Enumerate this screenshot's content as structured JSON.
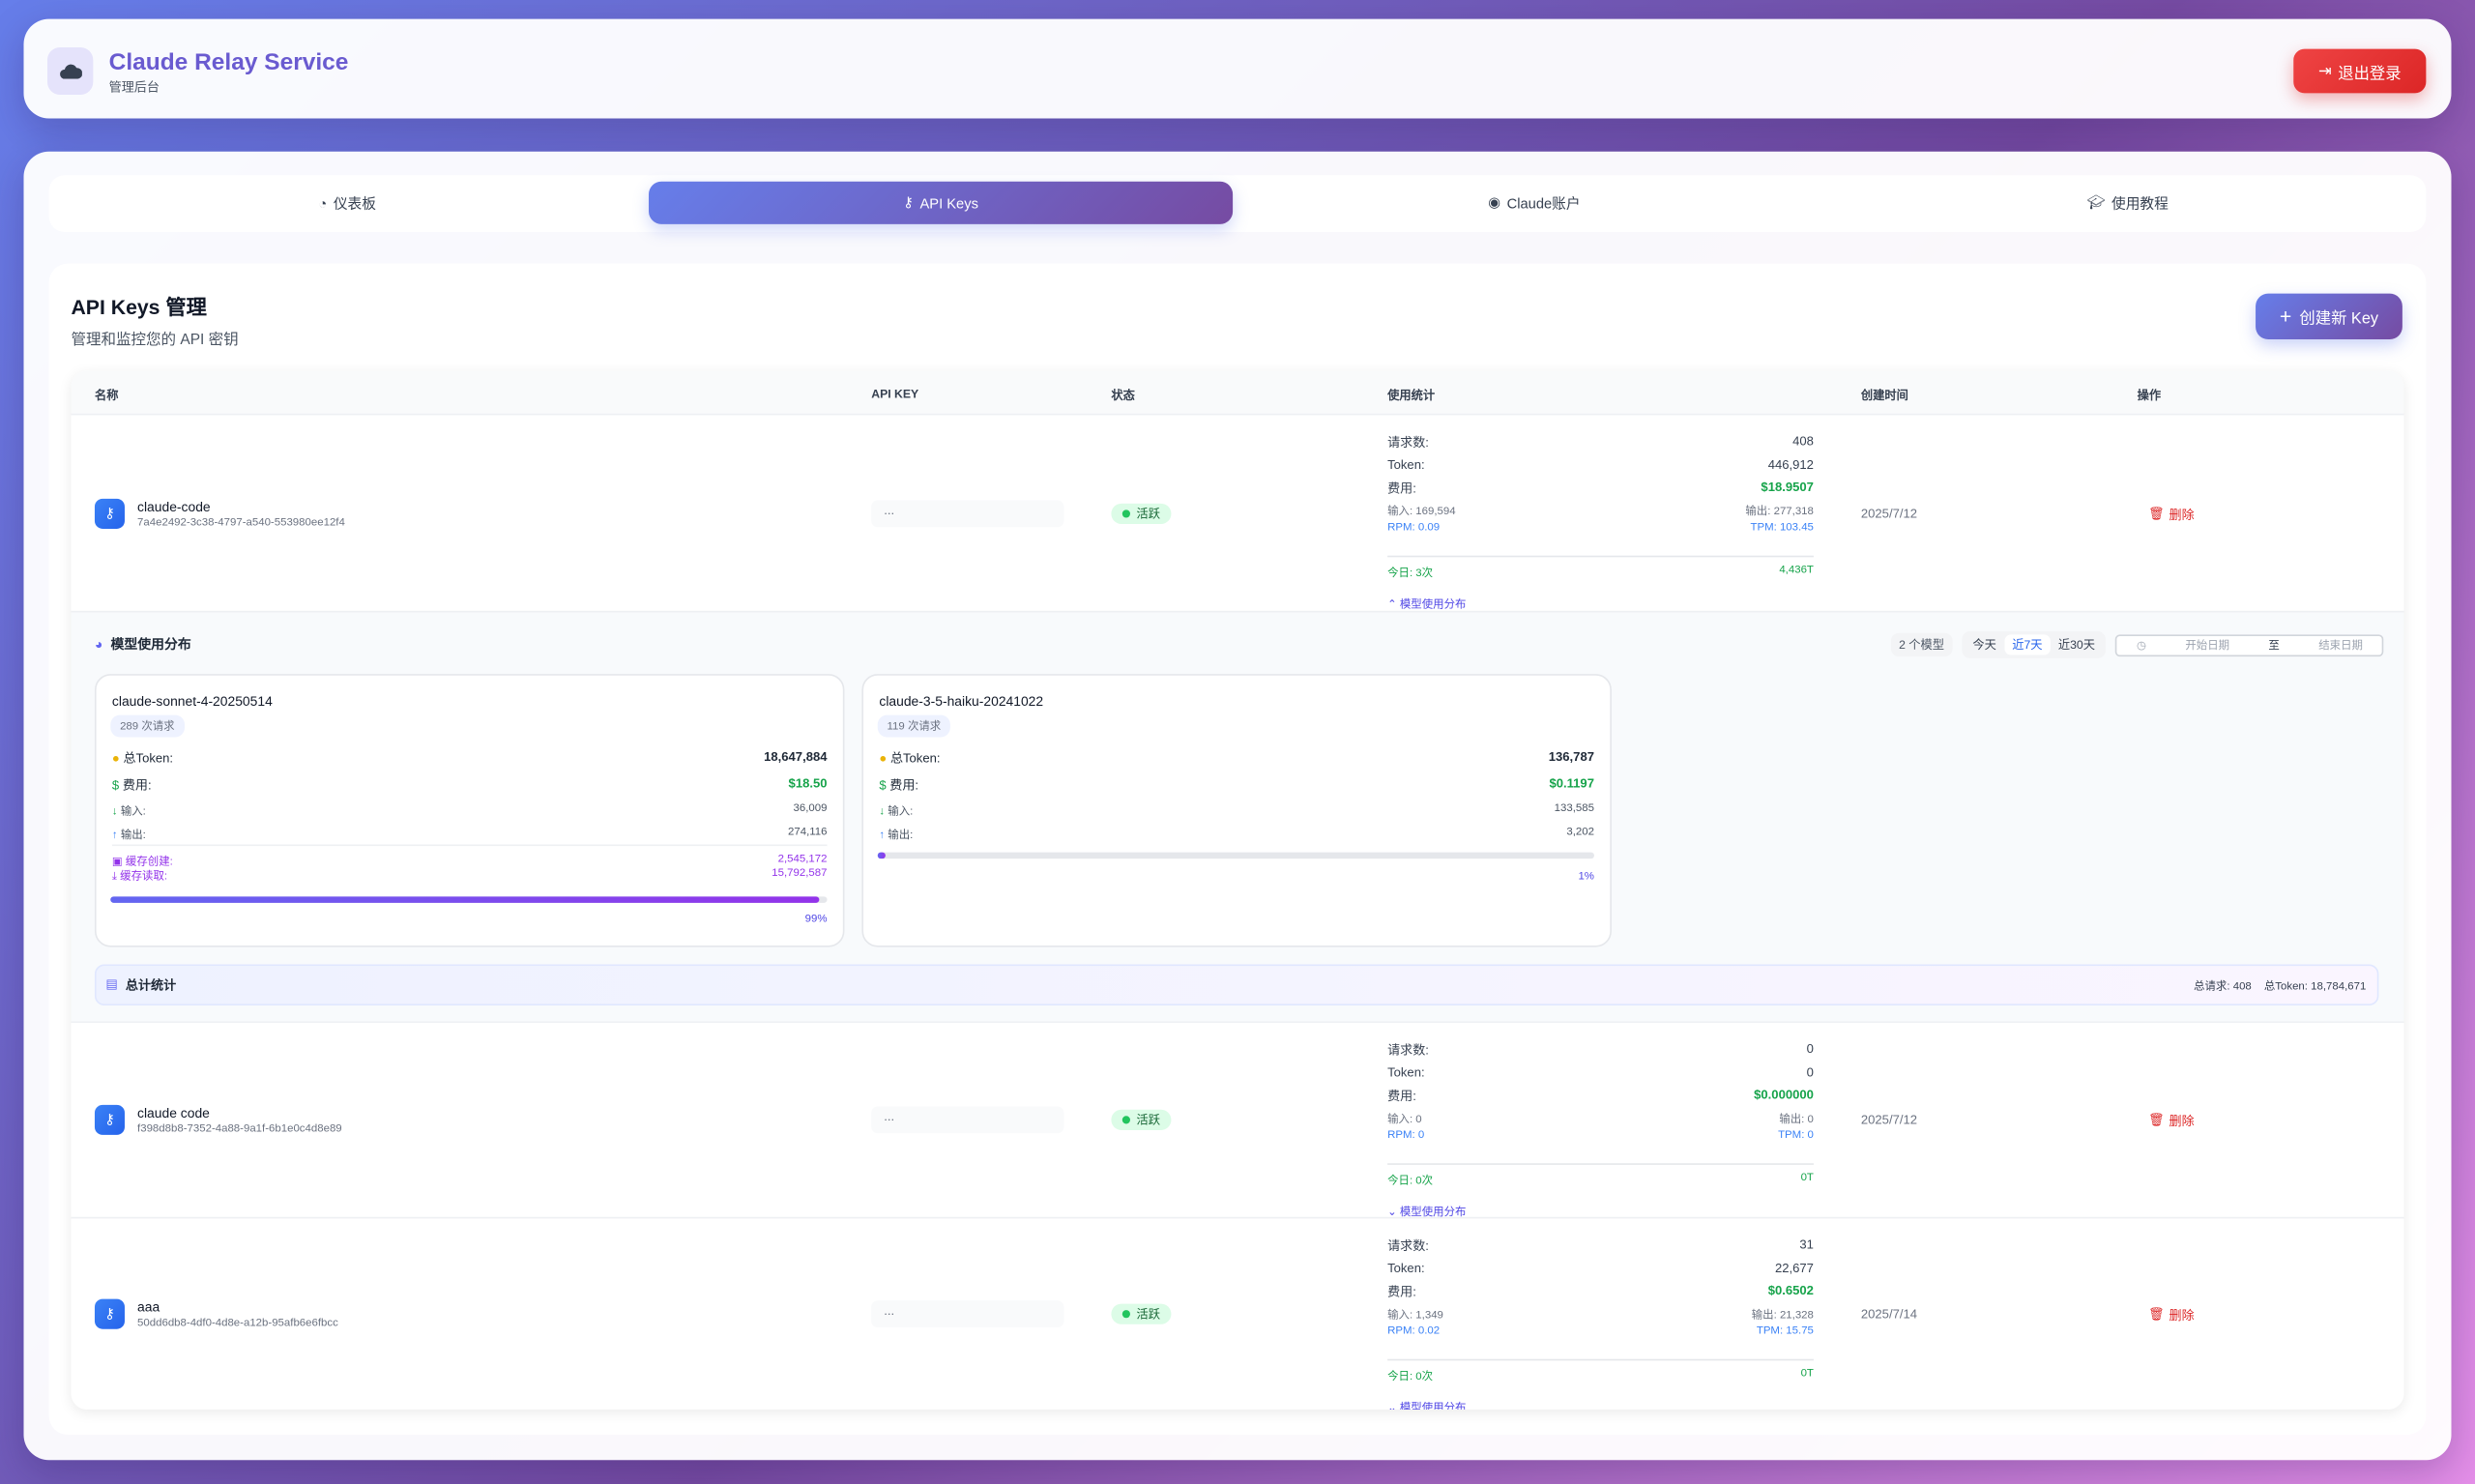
{
  "header": {
    "title": "Claude Relay Service",
    "subtitle": "管理后台",
    "logout": "退出登录"
  },
  "tabs": [
    {
      "label": "仪表板",
      "icon": "gauge-icon"
    },
    {
      "label": "API Keys",
      "icon": "key-icon",
      "active": true
    },
    {
      "label": "Claude账户",
      "icon": "user-circle-icon"
    },
    {
      "label": "使用教程",
      "icon": "graduation-cap-icon"
    }
  ],
  "page": {
    "title": "API Keys 管理",
    "subtitle": "管理和监控您的 API 密钥",
    "create": "创建新 Key"
  },
  "columns": [
    "名称",
    "API KEY",
    "状态",
    "使用统计",
    "创建时间",
    "操作"
  ],
  "labels": {
    "requests": "请求数:",
    "token": "Token:",
    "cost": "费用:",
    "delete": "删除",
    "toggle": "模型使用分布",
    "masked": "...",
    "status": "活跃"
  },
  "rows": [
    {
      "name": "claude-code",
      "id": "7a4e2492-3c38-4797-a540-553980ee12f4",
      "requests": "408",
      "tokens": "446,912",
      "cost": "$18.9507",
      "input": "输入: 169,594",
      "output": "输出: 277,318",
      "rpm": "RPM: 0.09",
      "tpm": "TPM: 103.45",
      "today": "今日: 3次",
      "today_tokens": "4,436T",
      "created": "2025/7/12"
    },
    {
      "name": "claude code",
      "id": "f398d8b8-7352-4a88-9a1f-6b1e0c4d8e89",
      "requests": "0",
      "tokens": "0",
      "cost": "$0.000000",
      "input": "输入: 0",
      "output": "输出: 0",
      "rpm": "RPM: 0",
      "tpm": "TPM: 0",
      "today": "今日: 0次",
      "today_tokens": "0T",
      "created": "2025/7/12"
    },
    {
      "name": "aaa",
      "id": "50dd6db8-4df0-4d8e-a12b-95afb6e6fbcc",
      "requests": "31",
      "tokens": "22,677",
      "cost": "$0.6502",
      "input": "输入: 1,349",
      "output": "输出: 21,328",
      "rpm": "RPM: 0.02",
      "tpm": "TPM: 15.75",
      "today": "今日: 0次",
      "today_tokens": "0T",
      "created": "2025/7/14"
    }
  ],
  "models": {
    "title": "模型使用分布",
    "count": "2 个模型",
    "ranges": [
      "今天",
      "近7天",
      "近30天"
    ],
    "active_range": "近7天",
    "start_placeholder": "开始日期",
    "to": "至",
    "end_placeholder": "结束日期",
    "labels": {
      "total_token": "总Token:",
      "cost": "费用:",
      "input": "输入:",
      "output": "输出:",
      "cache_create": "缓存创建:",
      "cache_read": "缓存读取:"
    },
    "cards": [
      {
        "name": "claude-sonnet-4-20250514",
        "requests": "289 次请求",
        "total_token": "18,647,884",
        "cost": "$18.50",
        "input": "36,009",
        "output": "274,116",
        "cache_create": "2,545,172",
        "cache_read": "15,792,587",
        "percent": 99,
        "percent_label": "99%"
      },
      {
        "name": "claude-3-5-haiku-20241022",
        "requests": "119 次请求",
        "total_token": "136,787",
        "cost": "$0.1197",
        "input": "133,585",
        "output": "3,202",
        "percent": 1,
        "percent_label": "1%"
      }
    ],
    "total": {
      "title": "总计统计",
      "requests": "总请求: 408",
      "tokens": "总Token: 18,784,671"
    }
  }
}
